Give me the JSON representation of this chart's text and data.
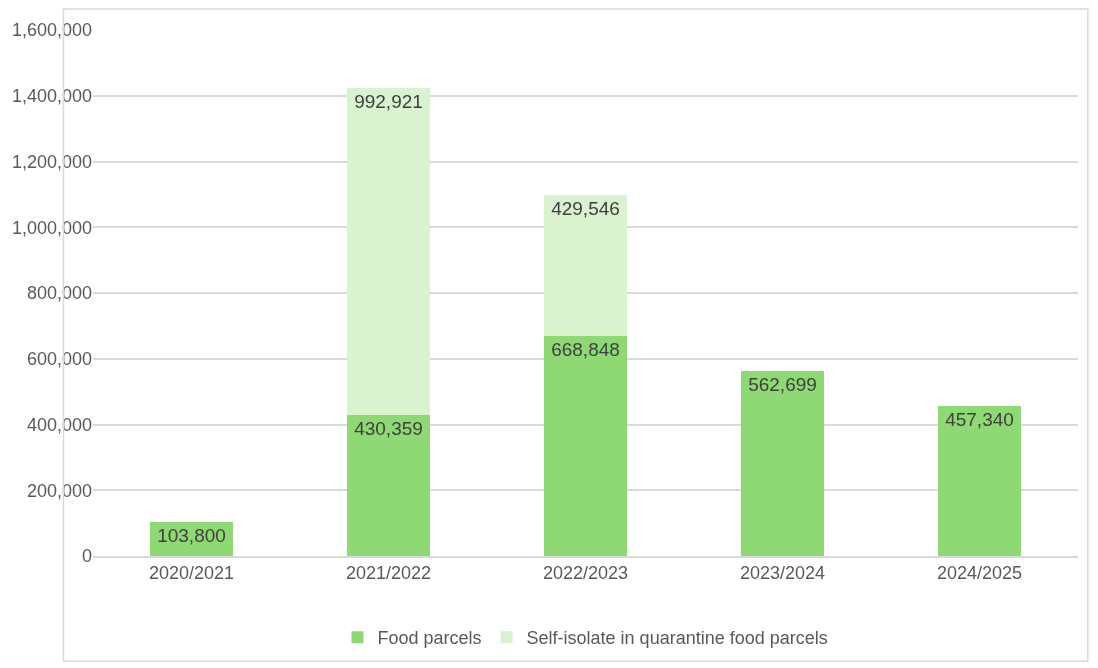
{
  "chart_data": {
    "type": "bar",
    "stacked": true,
    "categories": [
      "2020/2021",
      "2021/2022",
      "2022/2023",
      "2023/2024",
      "2024/2025"
    ],
    "series": [
      {
        "name": "Food parcels",
        "color": "#8ed973",
        "values": [
          103800,
          430359,
          668848,
          562699,
          457340
        ],
        "value_labels": [
          "103,800",
          "430,359",
          "668,848",
          "562,699",
          "457,340"
        ]
      },
      {
        "name": "Self-isolate in quarantine food parcels",
        "color": "#d9f2d0",
        "values": [
          null,
          992921,
          429546,
          null,
          null
        ],
        "value_labels": [
          null,
          "992,921",
          "429,546",
          null,
          null
        ]
      }
    ],
    "ylim": [
      0,
      1600000
    ],
    "yticks": [
      {
        "value": 0,
        "label": "0"
      },
      {
        "value": 200000,
        "label": "200,000"
      },
      {
        "value": 400000,
        "label": "400,000"
      },
      {
        "value": 600000,
        "label": "600,000"
      },
      {
        "value": 800000,
        "label": "800,000"
      },
      {
        "value": 1000000,
        "label": "1,000,000"
      },
      {
        "value": 1200000,
        "label": "1,200,000"
      },
      {
        "value": 1400000,
        "label": "1,400,000"
      },
      {
        "value": 1600000,
        "label": "1,600,000"
      }
    ],
    "grid": "y",
    "legend": "bottom"
  }
}
